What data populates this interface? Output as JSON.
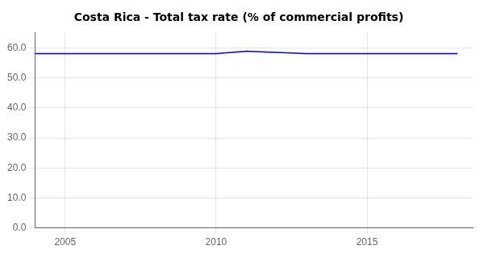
{
  "chart_data": {
    "type": "line",
    "title": "Costa Rica - Total tax rate (% of commercial profits)",
    "x": [
      2004,
      2005,
      2006,
      2007,
      2008,
      2009,
      2010,
      2011,
      2012,
      2013,
      2014,
      2015,
      2016,
      2017,
      2018
    ],
    "values": [
      58.1,
      58.1,
      58.1,
      58.1,
      58.1,
      58.1,
      58.1,
      58.9,
      58.5,
      58.1,
      58.1,
      58.1,
      58.1,
      58.1,
      58.1
    ],
    "color": "#0000cc",
    "xlim": [
      2004,
      2018.5
    ],
    "ylim": [
      0.0,
      65.0
    ],
    "xticks": [
      2005,
      2010,
      2015
    ],
    "yticks": [
      {
        "value": 0,
        "label": "0.0"
      },
      {
        "value": 10,
        "label": "10.0"
      },
      {
        "value": 20,
        "label": "20.0"
      },
      {
        "value": 30,
        "label": "30.0"
      },
      {
        "value": 40,
        "label": "40.0"
      },
      {
        "value": 50,
        "label": "50.0"
      },
      {
        "value": 60,
        "label": "60.0"
      }
    ],
    "grid": true
  }
}
